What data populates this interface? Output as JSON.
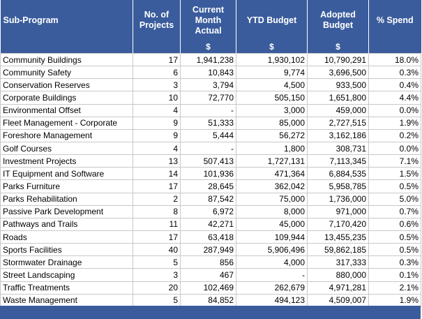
{
  "table": {
    "header": [
      "Sub-Program",
      "No. of Projects",
      "Current Month Actual",
      "YTD Budget",
      "Adopted Budget",
      "% Spend"
    ],
    "units": [
      "$",
      "$",
      "$"
    ],
    "rows": [
      [
        "Community Buildings",
        "17",
        "1,941,238",
        "1,930,102",
        "10,790,291",
        "18.0%"
      ],
      [
        "Community Safety",
        "6",
        "10,843",
        "9,774",
        "3,696,500",
        "0.3%"
      ],
      [
        "Conservation Reserves",
        "3",
        "3,794",
        "4,500",
        "933,500",
        "0.4%"
      ],
      [
        "Corporate Buildings",
        "10",
        "72,770",
        "505,150",
        "1,651,800",
        "4.4%"
      ],
      [
        "Environmental Offset",
        "4",
        "-",
        "3,000",
        "459,000",
        "0.0%"
      ],
      [
        "Fleet Management - Corporate",
        "9",
        "51,333",
        "85,000",
        "2,727,515",
        "1.9%"
      ],
      [
        "Foreshore Management",
        "9",
        "5,444",
        "56,272",
        "3,162,186",
        "0.2%"
      ],
      [
        "Golf Courses",
        "4",
        "-",
        "1,800",
        "308,731",
        "0.0%"
      ],
      [
        "Investment Projects",
        "13",
        "507,413",
        "1,727,131",
        "7,113,345",
        "7.1%"
      ],
      [
        "IT Equipment and Software",
        "14",
        "101,936",
        "471,364",
        "6,884,535",
        "1.5%"
      ],
      [
        "Parks Furniture",
        "17",
        "28,645",
        "362,042",
        "5,958,785",
        "0.5%"
      ],
      [
        "Parks Rehabilitation",
        "2",
        "87,542",
        "75,000",
        "1,736,000",
        "5.0%"
      ],
      [
        "Passive Park Development",
        "8",
        "6,972",
        "8,000",
        "971,000",
        "0.7%"
      ],
      [
        "Pathways and Trails",
        "11",
        "42,271",
        "45,000",
        "7,170,420",
        "0.6%"
      ],
      [
        "Roads",
        "17",
        "63,418",
        "109,944",
        "13,455,235",
        "0.5%"
      ],
      [
        "Sports Facilities",
        "40",
        "287,949",
        "5,906,496",
        "59,862,185",
        "0.5%"
      ],
      [
        "Stormwater Drainage",
        "5",
        "856",
        "4,000",
        "317,333",
        "0.3%"
      ],
      [
        "Street Landscaping",
        "3",
        "467",
        "-",
        "880,000",
        "0.1%"
      ],
      [
        "Traffic Treatments",
        "20",
        "102,469",
        "262,679",
        "4,971,281",
        "2.1%"
      ],
      [
        "Waste Management",
        "5",
        "84,852",
        "494,123",
        "4,509,007",
        "1.9%"
      ]
    ]
  }
}
